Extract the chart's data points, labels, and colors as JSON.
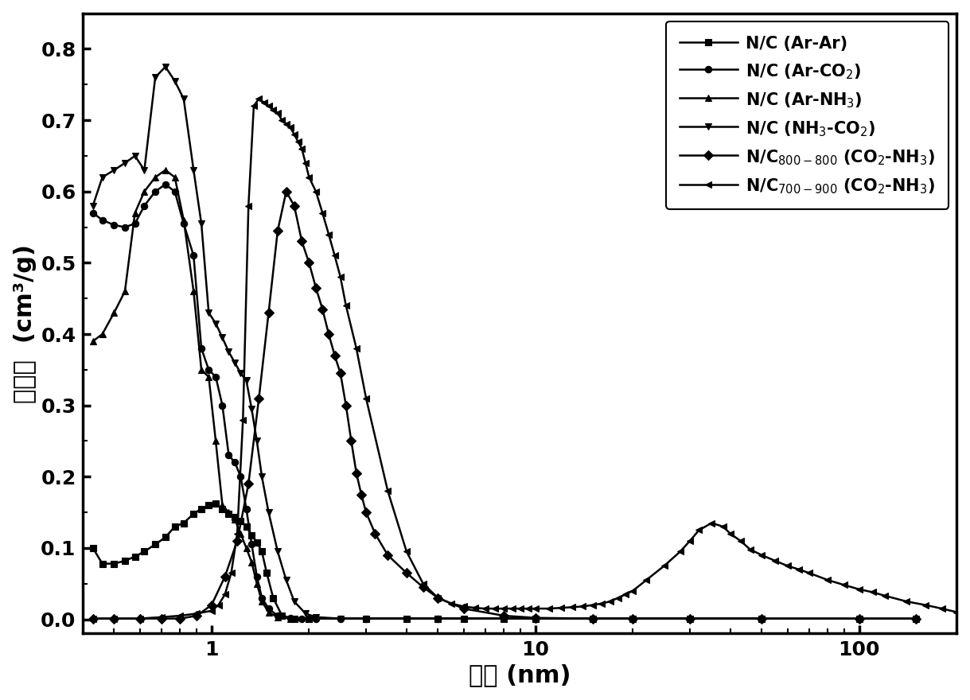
{
  "xlabel": "孔径 (nm)",
  "ylabel": "孔容积  (cm³/g)",
  "xlim": [
    0.4,
    200
  ],
  "ylim": [
    -0.02,
    0.85
  ],
  "yticks": [
    0.0,
    0.1,
    0.2,
    0.3,
    0.4,
    0.5,
    0.6,
    0.7,
    0.8
  ],
  "xticks": [
    1,
    10,
    100
  ],
  "xtick_labels": [
    "1",
    "10",
    "100"
  ],
  "background_color": "#ffffff",
  "series": [
    {
      "label": "N/C (Ar-Ar)",
      "marker": "s",
      "x": [
        0.43,
        0.46,
        0.5,
        0.54,
        0.58,
        0.62,
        0.67,
        0.72,
        0.77,
        0.82,
        0.88,
        0.93,
        0.98,
        1.03,
        1.08,
        1.13,
        1.18,
        1.23,
        1.28,
        1.33,
        1.38,
        1.43,
        1.48,
        1.55,
        1.65,
        1.8,
        2.0,
        3.0,
        4.0,
        5.0,
        6.0,
        8.0,
        10.0,
        15.0,
        20.0,
        30.0,
        50.0,
        100.0,
        150.0
      ],
      "y": [
        0.1,
        0.078,
        0.078,
        0.082,
        0.088,
        0.095,
        0.105,
        0.115,
        0.13,
        0.135,
        0.148,
        0.155,
        0.16,
        0.162,
        0.155,
        0.148,
        0.143,
        0.138,
        0.13,
        0.118,
        0.108,
        0.095,
        0.065,
        0.03,
        0.005,
        0.001,
        0.001,
        0.001,
        0.001,
        0.001,
        0.001,
        0.001,
        0.001,
        0.001,
        0.001,
        0.001,
        0.001,
        0.001,
        0.001
      ]
    },
    {
      "label": "N/C (Ar-CO$_2$)",
      "marker": "o",
      "x": [
        0.43,
        0.46,
        0.5,
        0.54,
        0.58,
        0.62,
        0.67,
        0.72,
        0.77,
        0.82,
        0.88,
        0.93,
        0.98,
        1.03,
        1.08,
        1.13,
        1.18,
        1.23,
        1.28,
        1.33,
        1.38,
        1.43,
        1.5,
        1.6,
        1.75,
        1.9,
        2.1,
        2.5,
        3.0,
        5.0,
        10.0,
        50.0
      ],
      "y": [
        0.57,
        0.56,
        0.553,
        0.55,
        0.555,
        0.58,
        0.6,
        0.61,
        0.6,
        0.555,
        0.51,
        0.38,
        0.35,
        0.34,
        0.3,
        0.23,
        0.22,
        0.2,
        0.155,
        0.105,
        0.06,
        0.03,
        0.015,
        0.005,
        0.002,
        0.001,
        0.001,
        0.001,
        0.001,
        0.001,
        0.001,
        0.001
      ]
    },
    {
      "label": "N/C (Ar-NH$_3$)",
      "marker": "^",
      "x": [
        0.43,
        0.46,
        0.5,
        0.54,
        0.58,
        0.62,
        0.67,
        0.72,
        0.77,
        0.82,
        0.88,
        0.93,
        0.98,
        1.03,
        1.08,
        1.13,
        1.18,
        1.23,
        1.28,
        1.33,
        1.38,
        1.43,
        1.5,
        1.6,
        1.75,
        2.0,
        3.0,
        5.0,
        10.0,
        50.0
      ],
      "y": [
        0.39,
        0.4,
        0.43,
        0.46,
        0.57,
        0.6,
        0.62,
        0.63,
        0.62,
        0.56,
        0.46,
        0.35,
        0.34,
        0.25,
        0.16,
        0.15,
        0.14,
        0.12,
        0.1,
        0.08,
        0.05,
        0.025,
        0.01,
        0.003,
        0.001,
        0.001,
        0.001,
        0.001,
        0.001,
        0.001
      ]
    },
    {
      "label": "N/C (NH$_3$-CO$_2$)",
      "marker": "v",
      "x": [
        0.43,
        0.46,
        0.5,
        0.54,
        0.58,
        0.62,
        0.67,
        0.72,
        0.77,
        0.82,
        0.88,
        0.93,
        0.98,
        1.03,
        1.08,
        1.13,
        1.18,
        1.23,
        1.28,
        1.33,
        1.38,
        1.43,
        1.5,
        1.6,
        1.7,
        1.8,
        1.95,
        2.1,
        2.5,
        3.0,
        5.0,
        10.0,
        50.0
      ],
      "y": [
        0.58,
        0.62,
        0.63,
        0.64,
        0.65,
        0.63,
        0.76,
        0.775,
        0.755,
        0.73,
        0.63,
        0.555,
        0.43,
        0.415,
        0.395,
        0.375,
        0.36,
        0.345,
        0.335,
        0.295,
        0.25,
        0.2,
        0.15,
        0.095,
        0.055,
        0.025,
        0.008,
        0.003,
        0.001,
        0.001,
        0.001,
        0.001,
        0.001
      ]
    },
    {
      "label": "N/C$_{800-800}$ (CO$_2$-NH$_3$)",
      "marker": "D",
      "x": [
        0.43,
        0.5,
        0.6,
        0.7,
        0.8,
        0.9,
        1.0,
        1.1,
        1.2,
        1.3,
        1.4,
        1.5,
        1.6,
        1.7,
        1.8,
        1.9,
        2.0,
        2.1,
        2.2,
        2.3,
        2.4,
        2.5,
        2.6,
        2.7,
        2.8,
        2.9,
        3.0,
        3.2,
        3.5,
        4.0,
        4.5,
        5.0,
        6.0,
        8.0,
        10.0,
        15.0,
        20.0,
        30.0,
        50.0,
        100.0,
        150.0
      ],
      "y": [
        0.001,
        0.001,
        0.001,
        0.001,
        0.001,
        0.005,
        0.02,
        0.06,
        0.11,
        0.19,
        0.31,
        0.43,
        0.545,
        0.6,
        0.58,
        0.53,
        0.5,
        0.465,
        0.435,
        0.4,
        0.37,
        0.345,
        0.3,
        0.25,
        0.205,
        0.175,
        0.15,
        0.12,
        0.09,
        0.065,
        0.045,
        0.03,
        0.015,
        0.005,
        0.002,
        0.001,
        0.001,
        0.001,
        0.001,
        0.001,
        0.001
      ]
    },
    {
      "label": "N/C$_{700-900}$ (CO$_2$-NH$_3$)",
      "marker": "<",
      "x": [
        0.43,
        0.5,
        0.6,
        0.7,
        0.8,
        0.9,
        1.0,
        1.05,
        1.1,
        1.15,
        1.2,
        1.25,
        1.3,
        1.35,
        1.4,
        1.45,
        1.5,
        1.55,
        1.6,
        1.65,
        1.7,
        1.75,
        1.8,
        1.85,
        1.9,
        1.95,
        2.0,
        2.1,
        2.2,
        2.3,
        2.4,
        2.5,
        2.6,
        2.8,
        3.0,
        3.5,
        4.0,
        4.5,
        5.0,
        5.5,
        6.0,
        6.5,
        7.0,
        7.5,
        8.0,
        8.5,
        9.0,
        9.5,
        10.0,
        11.0,
        12.0,
        13.0,
        14.0,
        15.0,
        16.0,
        17.0,
        18.0,
        19.0,
        20.0,
        22.0,
        25.0,
        28.0,
        30.0,
        32.0,
        35.0,
        38.0,
        40.0,
        43.0,
        46.0,
        50.0,
        55.0,
        60.0,
        65.0,
        70.0,
        80.0,
        90.0,
        100.0,
        110.0,
        120.0,
        140.0,
        160.0,
        180.0,
        200.0
      ],
      "y": [
        0.001,
        0.001,
        0.001,
        0.003,
        0.005,
        0.008,
        0.012,
        0.02,
        0.035,
        0.065,
        0.12,
        0.28,
        0.58,
        0.72,
        0.73,
        0.725,
        0.72,
        0.715,
        0.71,
        0.7,
        0.695,
        0.69,
        0.68,
        0.67,
        0.66,
        0.64,
        0.62,
        0.6,
        0.57,
        0.54,
        0.51,
        0.48,
        0.44,
        0.38,
        0.31,
        0.18,
        0.095,
        0.05,
        0.03,
        0.022,
        0.018,
        0.016,
        0.015,
        0.015,
        0.015,
        0.015,
        0.015,
        0.015,
        0.015,
        0.015,
        0.016,
        0.017,
        0.018,
        0.02,
        0.022,
        0.025,
        0.03,
        0.035,
        0.04,
        0.055,
        0.075,
        0.095,
        0.11,
        0.125,
        0.135,
        0.13,
        0.12,
        0.11,
        0.098,
        0.09,
        0.082,
        0.075,
        0.07,
        0.065,
        0.055,
        0.048,
        0.042,
        0.038,
        0.033,
        0.025,
        0.02,
        0.015,
        0.01
      ]
    }
  ]
}
